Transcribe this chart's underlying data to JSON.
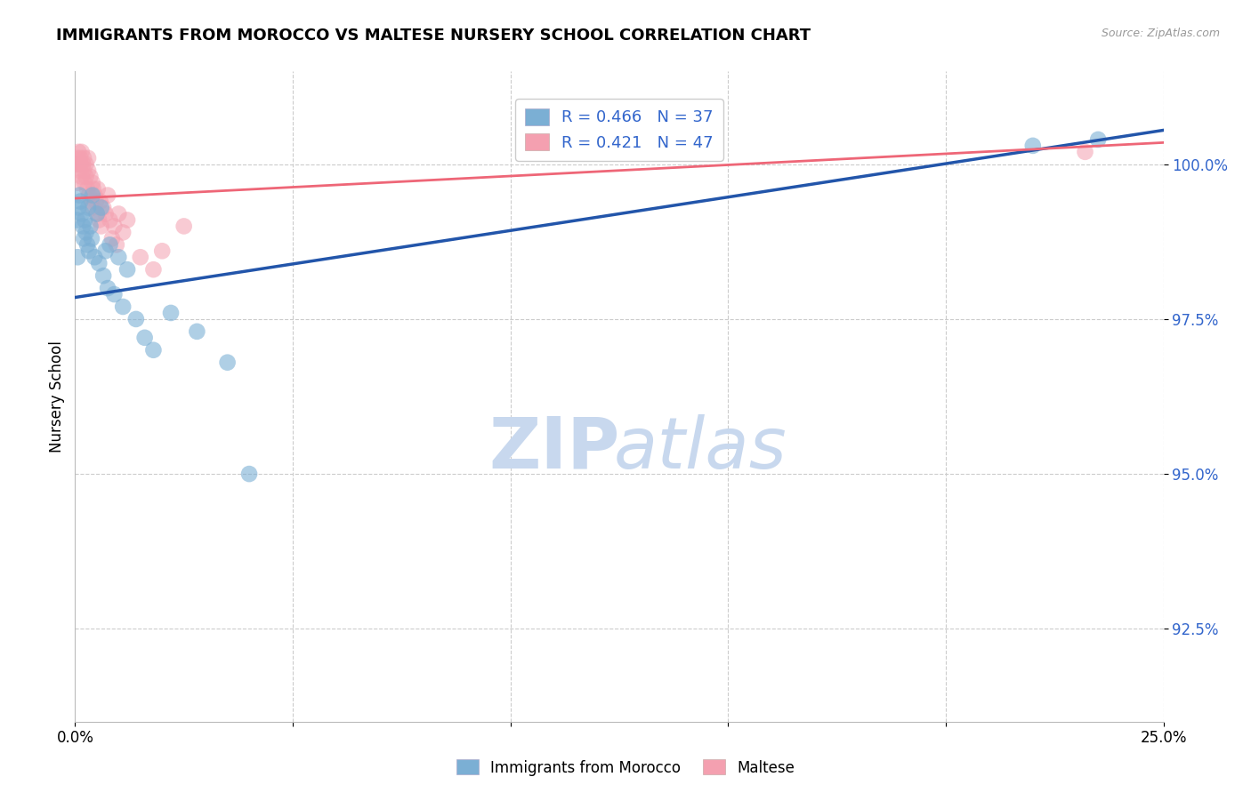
{
  "title": "IMMIGRANTS FROM MOROCCO VS MALTESE NURSERY SCHOOL CORRELATION CHART",
  "source": "Source: ZipAtlas.com",
  "ylabel": "Nursery School",
  "yticks": [
    92.5,
    95.0,
    97.5,
    100.0
  ],
  "ytick_labels": [
    "92.5%",
    "95.0%",
    "97.5%",
    "100.0%"
  ],
  "xlim": [
    0.0,
    25.0
  ],
  "ylim": [
    91.0,
    101.5
  ],
  "legend_label1": "Immigrants from Morocco",
  "legend_label2": "Maltese",
  "R1": 0.466,
  "N1": 37,
  "R2": 0.421,
  "N2": 47,
  "color_blue": "#7BAFD4",
  "color_pink": "#F4A0B0",
  "color_blue_line": "#2255AA",
  "color_pink_line": "#EE6677",
  "color_blue_text": "#3366CC",
  "watermark_zip_color": "#C8D8EE",
  "watermark_atlas_color": "#C8D8EE",
  "blue_trend_x0": 0.0,
  "blue_trend_y0": 97.85,
  "blue_trend_x1": 25.0,
  "blue_trend_y1": 100.55,
  "pink_trend_x0": 0.0,
  "pink_trend_y0": 99.45,
  "pink_trend_x1": 25.0,
  "pink_trend_y1": 100.35,
  "blue_points_x": [
    0.05,
    0.08,
    0.1,
    0.12,
    0.15,
    0.18,
    0.2,
    0.22,
    0.25,
    0.28,
    0.3,
    0.32,
    0.35,
    0.38,
    0.4,
    0.45,
    0.5,
    0.55,
    0.6,
    0.65,
    0.7,
    0.75,
    0.8,
    0.9,
    1.0,
    1.1,
    1.2,
    1.4,
    1.6,
    1.8,
    2.2,
    2.8,
    3.5,
    4.0,
    22.0,
    23.5,
    0.06
  ],
  "blue_points_y": [
    99.1,
    99.3,
    99.5,
    99.4,
    99.2,
    99.0,
    98.8,
    99.1,
    98.9,
    98.7,
    99.3,
    98.6,
    99.0,
    98.8,
    99.5,
    98.5,
    99.2,
    98.4,
    99.3,
    98.2,
    98.6,
    98.0,
    98.7,
    97.9,
    98.5,
    97.7,
    98.3,
    97.5,
    97.2,
    97.0,
    97.6,
    97.3,
    96.8,
    95.0,
    100.3,
    100.4,
    98.5
  ],
  "pink_points_x": [
    0.05,
    0.07,
    0.08,
    0.1,
    0.1,
    0.12,
    0.13,
    0.15,
    0.15,
    0.18,
    0.2,
    0.2,
    0.22,
    0.25,
    0.25,
    0.28,
    0.3,
    0.3,
    0.32,
    0.35,
    0.38,
    0.4,
    0.4,
    0.42,
    0.45,
    0.48,
    0.5,
    0.52,
    0.55,
    0.58,
    0.6,
    0.65,
    0.7,
    0.75,
    0.8,
    0.85,
    0.9,
    0.95,
    1.0,
    1.1,
    1.2,
    1.5,
    1.8,
    2.0,
    2.5,
    23.2,
    0.06
  ],
  "pink_points_y": [
    100.1,
    100.0,
    100.2,
    100.0,
    99.9,
    100.1,
    100.0,
    99.8,
    100.2,
    100.0,
    99.9,
    100.1,
    99.7,
    100.0,
    99.8,
    99.6,
    100.1,
    99.9,
    99.5,
    99.8,
    99.4,
    99.7,
    99.3,
    99.6,
    99.5,
    99.4,
    99.2,
    99.6,
    99.1,
    99.4,
    99.0,
    99.3,
    99.2,
    99.5,
    99.1,
    98.8,
    99.0,
    98.7,
    99.2,
    98.9,
    99.1,
    98.5,
    98.3,
    98.6,
    99.0,
    100.2,
    99.7
  ]
}
